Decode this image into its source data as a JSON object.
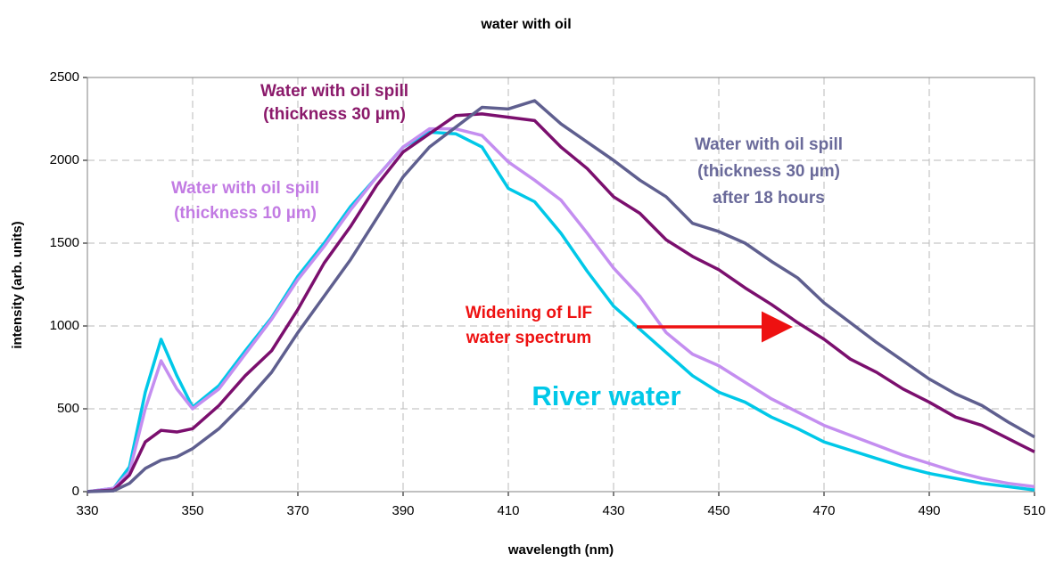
{
  "chart_data": {
    "type": "line",
    "title": "water with oil",
    "xlabel": "wavelength (nm)",
    "ylabel": "intensity (arb. units)",
    "x": [
      330,
      335,
      338,
      341,
      344,
      347,
      350,
      355,
      360,
      365,
      370,
      375,
      380,
      385,
      390,
      395,
      400,
      405,
      410,
      415,
      420,
      425,
      430,
      435,
      440,
      445,
      450,
      455,
      460,
      465,
      470,
      475,
      480,
      485,
      490,
      495,
      500,
      505,
      510
    ],
    "series": [
      {
        "color": "#00c8e8",
        "values": [
          0,
          20,
          150,
          600,
          920,
          700,
          510,
          640,
          850,
          1050,
          1300,
          1500,
          1720,
          1900,
          2080,
          2170,
          2160,
          2080,
          1830,
          1750,
          1560,
          1330,
          1120,
          980,
          840,
          700,
          600,
          540,
          450,
          380,
          300,
          250,
          200,
          150,
          110,
          80,
          50,
          30,
          10
        ]
      },
      {
        "color": "#c48ef0",
        "values": [
          0,
          20,
          120,
          500,
          790,
          620,
          500,
          620,
          830,
          1040,
          1280,
          1480,
          1700,
          1900,
          2080,
          2190,
          2190,
          2150,
          1990,
          1880,
          1760,
          1560,
          1350,
          1180,
          960,
          830,
          760,
          660,
          560,
          480,
          400,
          340,
          280,
          220,
          170,
          120,
          80,
          50,
          30
        ]
      },
      {
        "color": "#7b0f6e",
        "values": [
          0,
          10,
          100,
          300,
          370,
          360,
          380,
          520,
          700,
          850,
          1100,
          1380,
          1600,
          1850,
          2050,
          2160,
          2270,
          2280,
          2260,
          2240,
          2080,
          1950,
          1780,
          1680,
          1520,
          1420,
          1340,
          1230,
          1130,
          1020,
          920,
          800,
          720,
          620,
          540,
          450,
          400,
          320,
          240
        ]
      },
      {
        "color": "#5f5f8f",
        "values": [
          0,
          5,
          50,
          140,
          190,
          210,
          260,
          380,
          540,
          720,
          960,
          1180,
          1400,
          1650,
          1900,
          2080,
          2200,
          2320,
          2310,
          2360,
          2220,
          2110,
          2000,
          1880,
          1780,
          1620,
          1570,
          1500,
          1390,
          1290,
          1140,
          1020,
          900,
          790,
          680,
          590,
          520,
          420,
          330
        ]
      }
    ],
    "annotations": [
      {
        "lines": [
          "Water with oil spill",
          "(thickness 30 µm)"
        ],
        "color": "#8b1a6b"
      },
      {
        "lines": [
          "Water with oil spill",
          "(thickness 10 µm)"
        ],
        "color": "#c27be3"
      },
      {
        "lines": [
          "Water with oil spill",
          "(thickness 30 µm)",
          "after 18 hours"
        ],
        "color": "#6a6a9a"
      },
      {
        "lines": [
          "Widening of LIF",
          "water spectrum"
        ],
        "color": "#ee1111"
      },
      {
        "lines": [
          "River water"
        ],
        "color": "#00c8e8"
      }
    ],
    "xlim": [
      330,
      510
    ],
    "xticks": [
      330,
      350,
      370,
      390,
      410,
      430,
      450,
      470,
      490,
      510
    ],
    "ylim": [
      0,
      2500
    ],
    "yticks": [
      0,
      500,
      1000,
      1500,
      2000,
      2500
    ],
    "grid": true
  }
}
